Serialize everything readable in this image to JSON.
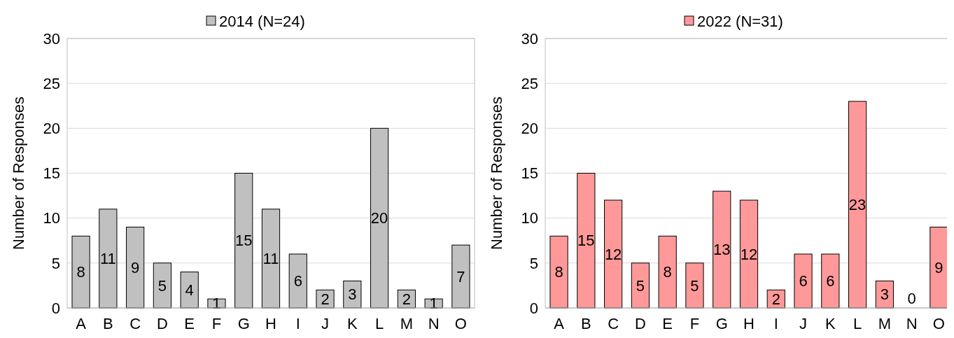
{
  "chart_data": [
    {
      "type": "bar",
      "categories": [
        "A",
        "B",
        "C",
        "D",
        "E",
        "F",
        "G",
        "H",
        "I",
        "J",
        "K",
        "L",
        "M",
        "N",
        "O"
      ],
      "series": [
        {
          "name": "2014 (N=24)",
          "color": "#c0c0c0",
          "values": [
            8,
            11,
            9,
            5,
            4,
            1,
            15,
            11,
            6,
            2,
            3,
            20,
            2,
            1,
            7
          ]
        }
      ],
      "ylabel": "Number of Responses",
      "ylim": [
        0,
        30
      ],
      "yticks": [
        0,
        5,
        10,
        15,
        20,
        25,
        30
      ],
      "grid": "y",
      "legend": "top",
      "data_labels": true
    },
    {
      "type": "bar",
      "categories": [
        "A",
        "B",
        "C",
        "D",
        "E",
        "F",
        "G",
        "H",
        "I",
        "J",
        "K",
        "L",
        "M",
        "N",
        "O"
      ],
      "series": [
        {
          "name": "2022 (N=31)",
          "color": "#ff9999",
          "values": [
            8,
            15,
            12,
            5,
            8,
            5,
            13,
            12,
            2,
            6,
            6,
            23,
            3,
            0,
            9
          ]
        }
      ],
      "ylabel": "Number of Responses",
      "ylim": [
        0,
        30
      ],
      "yticks": [
        0,
        5,
        10,
        15,
        20,
        25,
        30
      ],
      "grid": "y",
      "legend": "top",
      "data_labels": true
    }
  ]
}
